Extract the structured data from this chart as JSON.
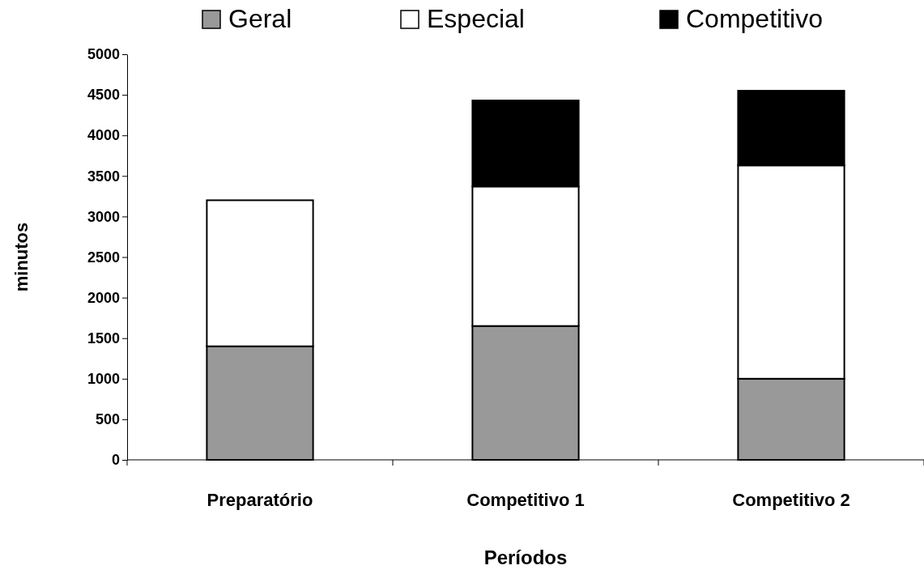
{
  "chart_data": {
    "type": "bar",
    "stacked": true,
    "xlabel": "Períodos",
    "ylabel": "minutos",
    "categories": [
      "Preparatório",
      "Competitivo 1",
      "Competitivo 2"
    ],
    "series": [
      {
        "name": "Geral",
        "color": "#999999",
        "values": [
          1400,
          1650,
          1000
        ]
      },
      {
        "name": "Especial",
        "color": "#ffffff",
        "values": [
          1800,
          1720,
          2630
        ]
      },
      {
        "name": "Competitivo",
        "color": "#000000",
        "values": [
          0,
          1060,
          920
        ]
      }
    ],
    "ylim": [
      0,
      5000
    ],
    "yticks": [
      0,
      500,
      1000,
      1500,
      2000,
      2500,
      3000,
      3500,
      4000,
      4500,
      5000
    ],
    "grid": false,
    "legend": "top"
  }
}
